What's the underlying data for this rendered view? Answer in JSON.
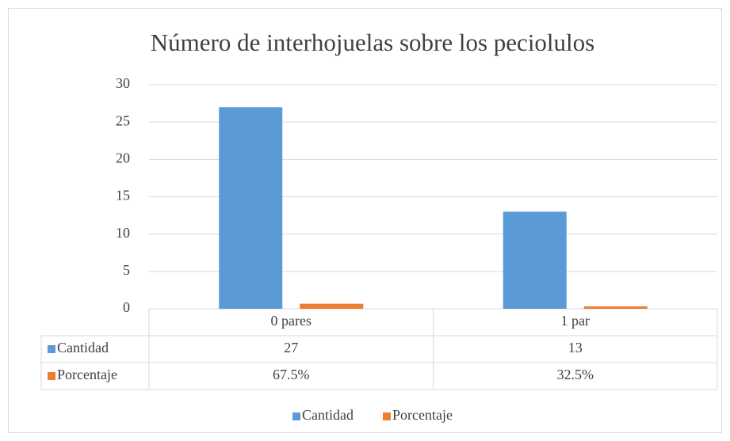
{
  "chart_data": {
    "type": "bar",
    "title": "Número de interhojuelas sobre los peciolulos",
    "categories": [
      "0 pares",
      "1 par"
    ],
    "series": [
      {
        "name": "Cantidad",
        "color": "#5b9bd5",
        "values": [
          27,
          13
        ]
      },
      {
        "name": "Porcentaje",
        "color": "#ed7d31",
        "values": [
          0.675,
          0.325
        ],
        "value_labels": [
          "67.5%",
          "32.5%"
        ]
      }
    ],
    "ylim": [
      0,
      30
    ],
    "yticks": [
      0,
      5,
      10,
      15,
      20,
      25,
      30
    ],
    "grid": true,
    "data_table": true,
    "legend": "bottom"
  }
}
